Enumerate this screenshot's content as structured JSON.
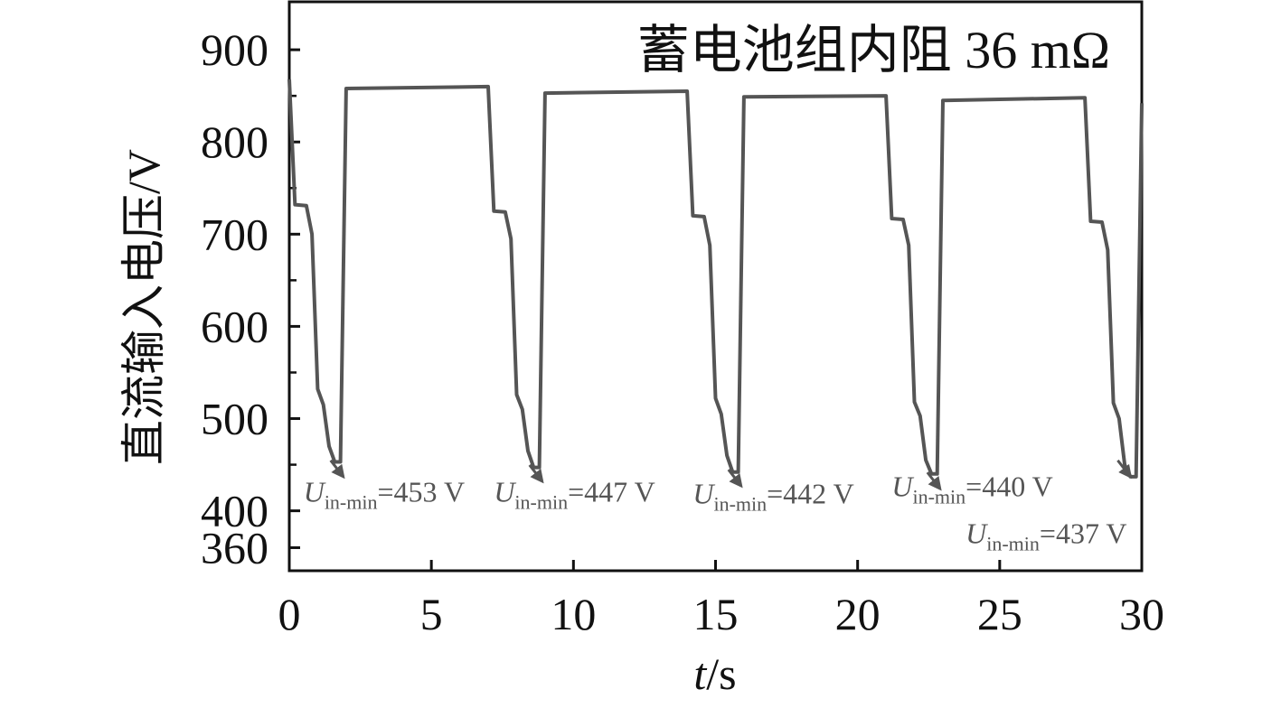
{
  "chart_data": {
    "type": "line",
    "title": "蓄电池组内阻 36 mΩ",
    "xlabel_italic": "t",
    "xlabel_rest": "/s",
    "ylabel": "直流输入电压/V",
    "xlim": [
      0,
      30
    ],
    "ylim": [
      335,
      952
    ],
    "x_ticks": [
      0,
      5,
      10,
      15,
      20,
      25,
      30
    ],
    "x_tick_labels": [
      "0",
      "5",
      "10",
      "15",
      "20",
      "25",
      "30"
    ],
    "y_major_ticks": [
      360,
      400,
      500,
      600,
      700,
      800,
      900
    ],
    "y_tick_labels": [
      "360",
      "400",
      "500",
      "600",
      "700",
      "800",
      "900"
    ],
    "y_minor_ticks": [
      450,
      550,
      650,
      750,
      850
    ],
    "grid": false,
    "legend": "none",
    "series": [
      {
        "color": "#555555",
        "x": [
          0.0,
          0.2,
          0.6,
          0.8,
          1.0,
          1.2,
          1.4,
          1.6,
          1.8,
          2.0,
          7.0,
          7.2,
          7.6,
          7.8,
          8.0,
          8.2,
          8.4,
          8.6,
          8.8,
          9.0,
          14.0,
          14.2,
          14.6,
          14.8,
          15.0,
          15.2,
          15.4,
          15.6,
          15.8,
          16.0,
          21.0,
          21.2,
          21.6,
          21.8,
          22.0,
          22.2,
          22.4,
          22.6,
          22.8,
          23.0,
          28.0,
          28.2,
          28.6,
          28.8,
          29.0,
          29.2,
          29.4,
          29.6,
          29.8,
          30.0
        ],
        "y": [
          868,
          732,
          731,
          700,
          532,
          515,
          470,
          453,
          453,
          858,
          860,
          725,
          724,
          695,
          526,
          510,
          465,
          447,
          447,
          853,
          855,
          720,
          719,
          688,
          522,
          505,
          460,
          442,
          442,
          849,
          850,
          717,
          716,
          688,
          518,
          503,
          455,
          440,
          440,
          845,
          848,
          714,
          713,
          683,
          517,
          500,
          450,
          437,
          437,
          842
        ]
      }
    ],
    "annotations": [
      {
        "text_main": "U",
        "text_sub": "in-min",
        "text_value": "=453 V",
        "x": 0.5,
        "y": 410,
        "arrow_to": [
          1.9,
          437
        ]
      },
      {
        "text_main": "U",
        "text_sub": "in-min",
        "text_value": "=447 V",
        "x": 7.2,
        "y": 410,
        "arrow_to": [
          8.9,
          432
        ]
      },
      {
        "text_main": "U",
        "text_sub": "in-min",
        "text_value": "=442 V",
        "x": 14.2,
        "y": 408,
        "arrow_to": [
          15.9,
          427
        ]
      },
      {
        "text_main": "U",
        "text_sub": "in-min",
        "text_value": "=440 V",
        "x": 21.2,
        "y": 416,
        "arrow_to": [
          22.9,
          424
        ]
      },
      {
        "text_main": "U",
        "text_sub": "in-min",
        "text_value": "=437 V",
        "x": 23.8,
        "y": 365,
        "arrow_to": [
          29.6,
          437
        ]
      }
    ]
  }
}
